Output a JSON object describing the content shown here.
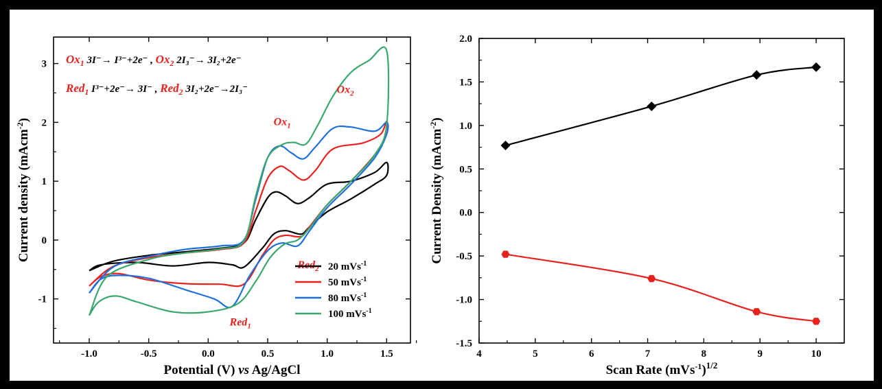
{
  "chart_data": [
    {
      "type": "line",
      "title": "",
      "xlabel_main": "Potential (V) ",
      "xlabel_italic": "vs",
      "xlabel_tail": " Ag/AgCl",
      "ylabel": "Current density (mAcm",
      "ylabel_exp": "-2",
      "ylabel_close": ")",
      "xlim": [
        -1.3,
        1.7
      ],
      "ylim": [
        -1.75,
        3.45
      ],
      "xticks": [
        "-1.0",
        "-0.5",
        "0.0",
        "0.5",
        "1.0",
        "1.5"
      ],
      "xtick_values": [
        -1.0,
        -0.5,
        0.0,
        0.5,
        1.0,
        1.5
      ],
      "yticks": [
        "-1",
        "0",
        "1",
        "2",
        "3"
      ],
      "ytick_values": [
        -1,
        0,
        1,
        2,
        3
      ],
      "legend_position": "bottom-right",
      "reactions": {
        "line1": {
          "tag": "Ox",
          "sub": "1",
          "text": "3I⁻→ I³⁻+2e⁻   ,",
          "tag2": "Ox",
          "sub2": "2",
          "text2": "2I₃⁻→ 3I₂+2e⁻"
        },
        "line2": {
          "tag": "Red",
          "sub": "1",
          "text": "I³⁻+2e⁻→ 3I⁻ ,",
          "tag2": "Red",
          "sub2": "2",
          "text2": "3I₂+2e⁻→2I₃⁻"
        }
      },
      "peak_labels": [
        {
          "tag": "Ox",
          "sub": "2",
          "x": 1.08,
          "y": 2.5
        },
        {
          "tag": "Ox",
          "sub": "1",
          "x": 0.55,
          "y": 1.95
        },
        {
          "tag": "Red",
          "sub": "2",
          "x": 0.75,
          "y": -0.48
        },
        {
          "tag": "Red",
          "sub": "1",
          "x": 0.18,
          "y": -1.45
        }
      ],
      "series": [
        {
          "name": "20 mVs",
          "unit_exp": "-1",
          "color": "#000000",
          "cycle": [
            [
              -1.0,
              -0.52
            ],
            [
              -0.8,
              -0.36
            ],
            [
              -0.5,
              -0.26
            ],
            [
              -0.2,
              -0.2
            ],
            [
              0.1,
              -0.14
            ],
            [
              0.3,
              -0.05
            ],
            [
              0.4,
              0.35
            ],
            [
              0.5,
              0.72
            ],
            [
              0.57,
              0.82
            ],
            [
              0.65,
              0.75
            ],
            [
              0.75,
              0.62
            ],
            [
              0.85,
              0.72
            ],
            [
              1.0,
              0.95
            ],
            [
              1.2,
              1.0
            ],
            [
              1.4,
              1.15
            ],
            [
              1.5,
              1.32
            ],
            [
              1.5,
              1.1
            ],
            [
              1.4,
              0.95
            ],
            [
              1.2,
              0.7
            ],
            [
              1.0,
              0.48
            ],
            [
              0.85,
              0.22
            ],
            [
              0.78,
              0.1
            ],
            [
              0.65,
              0.16
            ],
            [
              0.55,
              0.1
            ],
            [
              0.45,
              -0.15
            ],
            [
              0.3,
              -0.46
            ],
            [
              0.2,
              -0.42
            ],
            [
              0.0,
              -0.38
            ],
            [
              -0.3,
              -0.44
            ],
            [
              -0.6,
              -0.38
            ],
            [
              -0.9,
              -0.42
            ],
            [
              -1.0,
              -0.52
            ]
          ]
        },
        {
          "name": "50 mVs",
          "unit_exp": "-1",
          "color": "#e8211d",
          "cycle": [
            [
              -1.0,
              -0.78
            ],
            [
              -0.8,
              -0.45
            ],
            [
              -0.5,
              -0.3
            ],
            [
              -0.2,
              -0.22
            ],
            [
              0.1,
              -0.16
            ],
            [
              0.3,
              -0.05
            ],
            [
              0.4,
              0.5
            ],
            [
              0.5,
              1.05
            ],
            [
              0.6,
              1.25
            ],
            [
              0.68,
              1.18
            ],
            [
              0.8,
              1.02
            ],
            [
              0.9,
              1.18
            ],
            [
              1.05,
              1.55
            ],
            [
              1.3,
              1.65
            ],
            [
              1.45,
              1.8
            ],
            [
              1.5,
              2.02
            ],
            [
              1.5,
              1.8
            ],
            [
              1.4,
              1.45
            ],
            [
              1.2,
              1.0
            ],
            [
              1.0,
              0.6
            ],
            [
              0.85,
              0.22
            ],
            [
              0.78,
              0.06
            ],
            [
              0.65,
              0.08
            ],
            [
              0.55,
              0.0
            ],
            [
              0.45,
              -0.28
            ],
            [
              0.3,
              -0.75
            ],
            [
              0.1,
              -0.75
            ],
            [
              -0.2,
              -0.74
            ],
            [
              -0.5,
              -0.68
            ],
            [
              -0.75,
              -0.57
            ],
            [
              -0.9,
              -0.62
            ],
            [
              -1.0,
              -0.78
            ]
          ]
        },
        {
          "name": "80 mVs",
          "unit_exp": "-1",
          "color": "#1e6fdc",
          "cycle": [
            [
              -1.0,
              -0.9
            ],
            [
              -0.8,
              -0.46
            ],
            [
              -0.5,
              -0.28
            ],
            [
              -0.2,
              -0.16
            ],
            [
              0.1,
              -0.1
            ],
            [
              0.3,
              0.0
            ],
            [
              0.4,
              0.7
            ],
            [
              0.5,
              1.4
            ],
            [
              0.6,
              1.6
            ],
            [
              0.7,
              1.48
            ],
            [
              0.8,
              1.38
            ],
            [
              0.9,
              1.58
            ],
            [
              1.05,
              1.9
            ],
            [
              1.2,
              1.92
            ],
            [
              1.4,
              1.85
            ],
            [
              1.5,
              2.0
            ],
            [
              1.5,
              1.8
            ],
            [
              1.4,
              1.4
            ],
            [
              1.2,
              0.95
            ],
            [
              1.0,
              0.55
            ],
            [
              0.85,
              0.15
            ],
            [
              0.75,
              -0.1
            ],
            [
              0.62,
              -0.05
            ],
            [
              0.5,
              -0.18
            ],
            [
              0.35,
              -0.6
            ],
            [
              0.2,
              -1.13
            ],
            [
              0.05,
              -1.0
            ],
            [
              -0.2,
              -0.84
            ],
            [
              -0.5,
              -0.65
            ],
            [
              -0.75,
              -0.6
            ],
            [
              -0.9,
              -0.66
            ],
            [
              -1.0,
              -0.9
            ]
          ]
        },
        {
          "name": "100 mVs",
          "unit_exp": "-1",
          "color": "#3aa76d",
          "cycle": [
            [
              -1.0,
              -1.28
            ],
            [
              -0.85,
              -0.62
            ],
            [
              -0.5,
              -0.33
            ],
            [
              -0.2,
              -0.22
            ],
            [
              0.1,
              -0.15
            ],
            [
              0.3,
              -0.02
            ],
            [
              0.4,
              0.75
            ],
            [
              0.5,
              1.4
            ],
            [
              0.62,
              1.62
            ],
            [
              0.72,
              1.66
            ],
            [
              0.82,
              1.63
            ],
            [
              0.92,
              1.95
            ],
            [
              1.05,
              2.45
            ],
            [
              1.2,
              2.85
            ],
            [
              1.35,
              3.05
            ],
            [
              1.5,
              3.22
            ],
            [
              1.5,
              1.95
            ],
            [
              1.4,
              1.45
            ],
            [
              1.2,
              1.0
            ],
            [
              1.0,
              0.6
            ],
            [
              0.85,
              0.2
            ],
            [
              0.75,
              0.0
            ],
            [
              0.64,
              -0.07
            ],
            [
              0.52,
              -0.3
            ],
            [
              0.4,
              -0.7
            ],
            [
              0.25,
              -1.08
            ],
            [
              0.0,
              -1.22
            ],
            [
              -0.3,
              -1.22
            ],
            [
              -0.6,
              -1.05
            ],
            [
              -0.78,
              -0.95
            ],
            [
              -0.92,
              -1.05
            ],
            [
              -1.0,
              -1.28
            ]
          ]
        }
      ]
    },
    {
      "type": "line",
      "title": "",
      "xlabel": "Scan Rate (mVs",
      "xlabel_exp": "-1",
      "xlabel_close": ")",
      "xlabel_power": "1/2",
      "ylabel": "Current Density (mAcm",
      "ylabel_exp": "-2",
      "ylabel_close": ")",
      "xlim": [
        4,
        10.5
      ],
      "ylim": [
        -1.5,
        2.0
      ],
      "xticks": [
        "4",
        "5",
        "6",
        "7",
        "8",
        "9",
        "10"
      ],
      "xtick_values": [
        4,
        5,
        6,
        7,
        8,
        9,
        10
      ],
      "yticks": [
        "-1.5",
        "-1.0",
        "-0.5",
        "0.0",
        "0.5",
        "1.0",
        "1.5",
        "2.0"
      ],
      "ytick_values": [
        -1.5,
        -1.0,
        -0.5,
        0.0,
        0.5,
        1.0,
        1.5,
        2.0
      ],
      "series": [
        {
          "color": "#000000",
          "marker": "diamond",
          "x": [
            4.47,
            7.07,
            8.94,
            10.0
          ],
          "y": [
            0.77,
            1.22,
            1.58,
            1.67
          ]
        },
        {
          "color": "#e8211d",
          "marker": "hexagon",
          "x": [
            4.47,
            7.07,
            8.94,
            10.0
          ],
          "y": [
            -0.48,
            -0.76,
            -1.14,
            -1.25
          ]
        }
      ]
    }
  ]
}
